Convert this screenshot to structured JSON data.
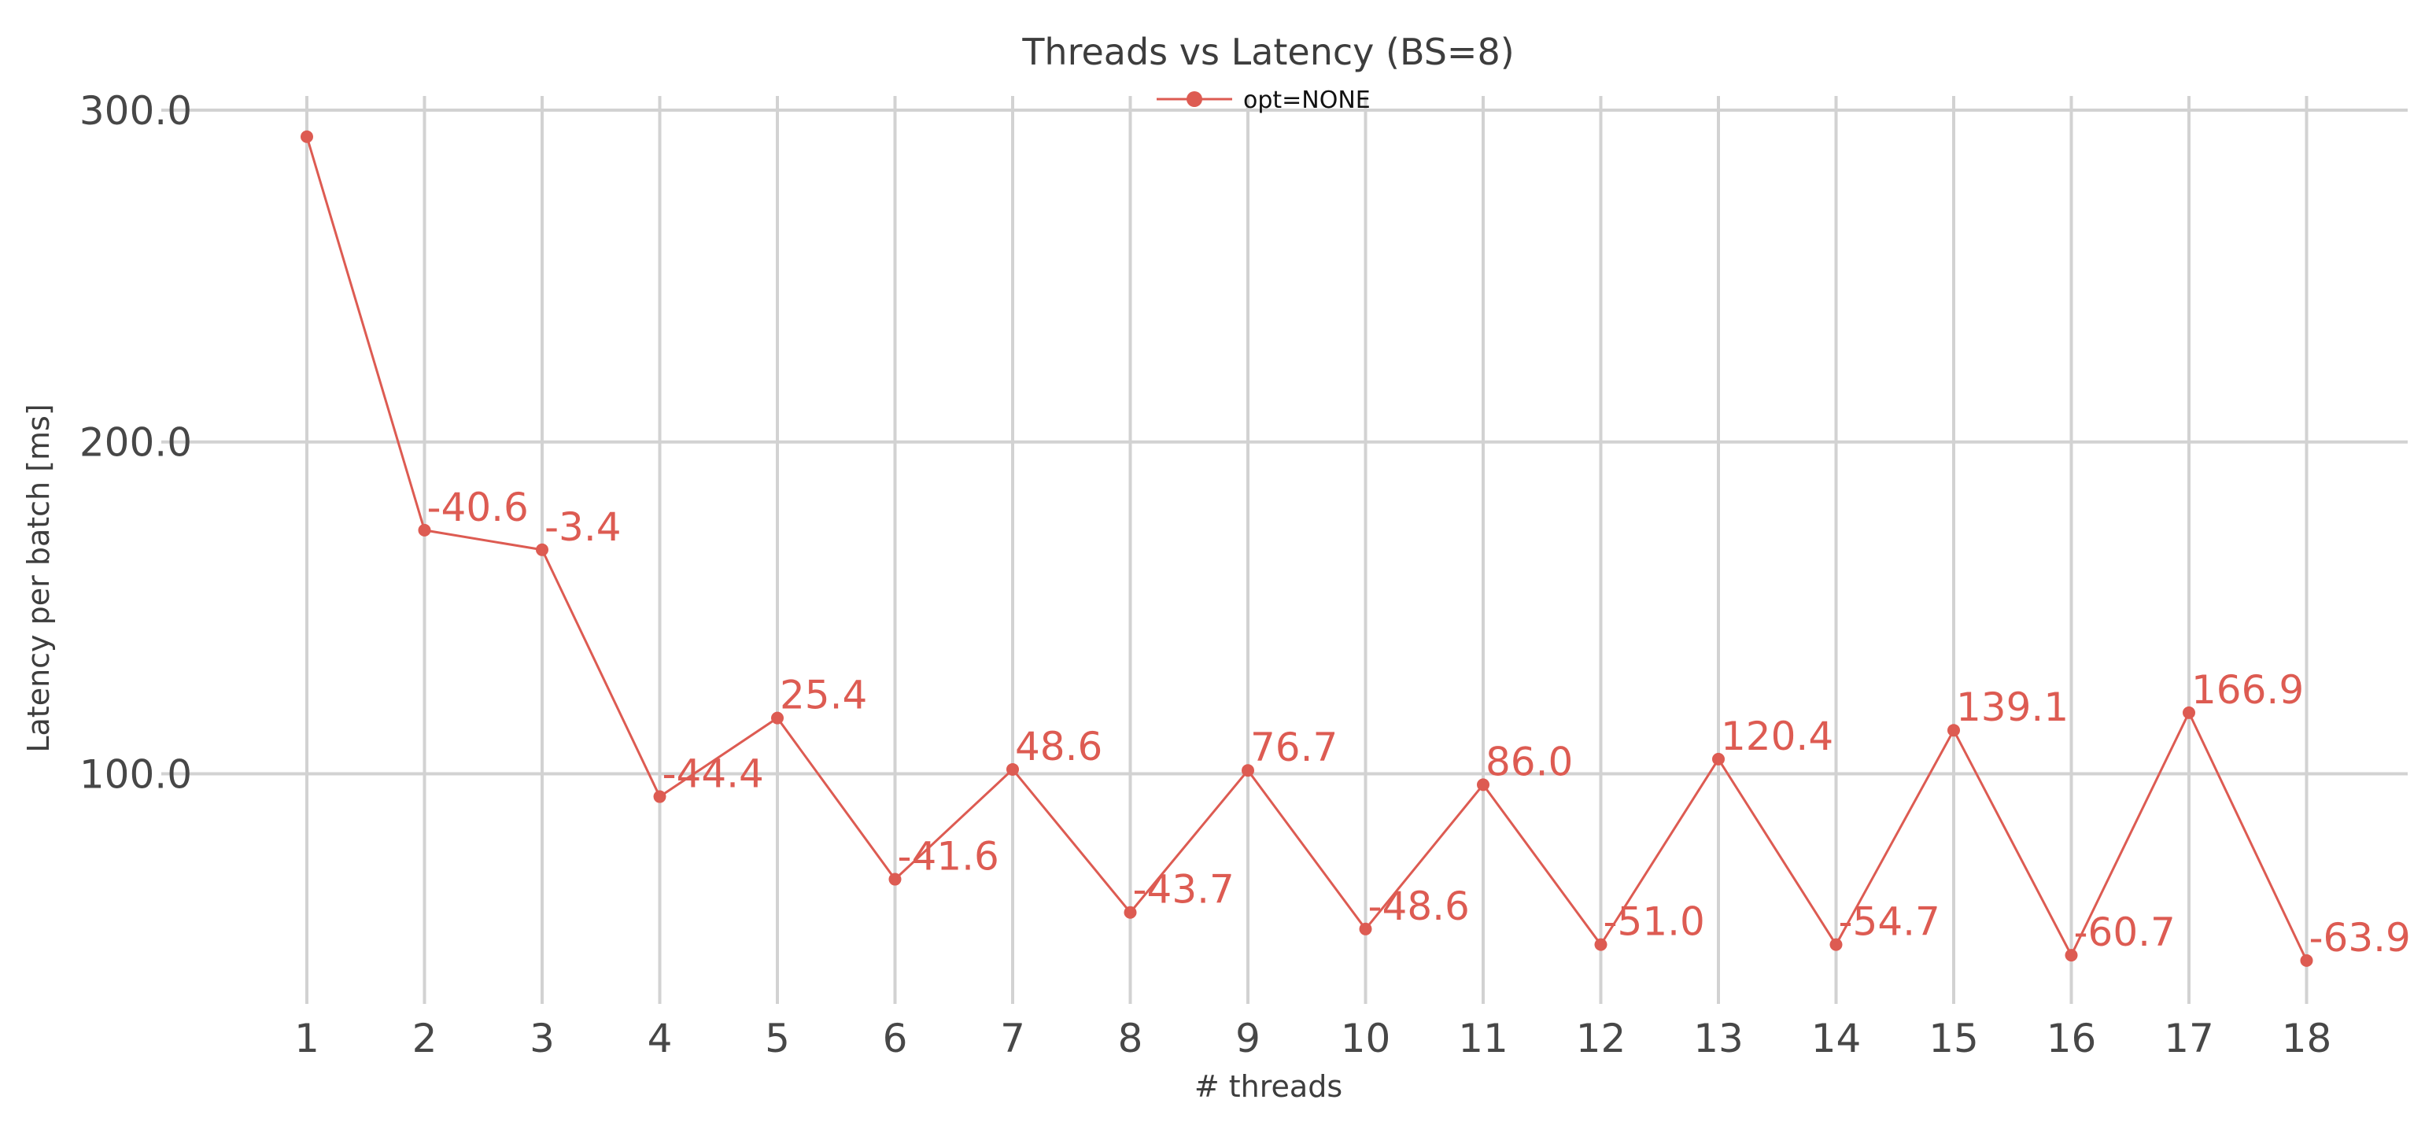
{
  "chart_data": {
    "type": "line",
    "title": "Threads vs Latency (BS=8)",
    "xlabel": "# threads",
    "ylabel": "Latency per batch [ms]",
    "x": [
      1,
      2,
      3,
      4,
      5,
      6,
      7,
      8,
      9,
      10,
      11,
      12,
      13,
      14,
      15,
      16,
      17,
      18
    ],
    "x_tick_labels": [
      "1",
      "2",
      "3",
      "4",
      "5",
      "6",
      "7",
      "8",
      "9",
      "10",
      "11",
      "12",
      "13",
      "14",
      "15",
      "16",
      "17",
      "18"
    ],
    "y_ticks": [
      100.0,
      200.0,
      300.0
    ],
    "y_tick_labels": [
      "100.0",
      "200.0",
      "300.0"
    ],
    "ylim": [
      33,
      300
    ],
    "grid": true,
    "legend_position": "top-center",
    "series": [
      {
        "name": "opt=NONE",
        "color": "#dd5b52",
        "values": [
          292,
          173.4,
          167.5,
          93.1,
          116.8,
          68.2,
          101.3,
          58.2,
          101.0,
          53.2,
          96.7,
          48.5,
          104.4,
          48.5,
          113.1,
          45.3,
          118.4,
          43.7
        ],
        "point_labels": [
          "",
          "-40.6",
          "-3.4",
          "-44.4",
          "25.4",
          "-41.6",
          "48.6",
          "-43.7",
          "76.7",
          "-48.6",
          "86.0",
          "-51.0",
          "120.4",
          "-54.7",
          "139.1",
          "-60.7",
          "166.9",
          "-63.9"
        ]
      }
    ]
  }
}
